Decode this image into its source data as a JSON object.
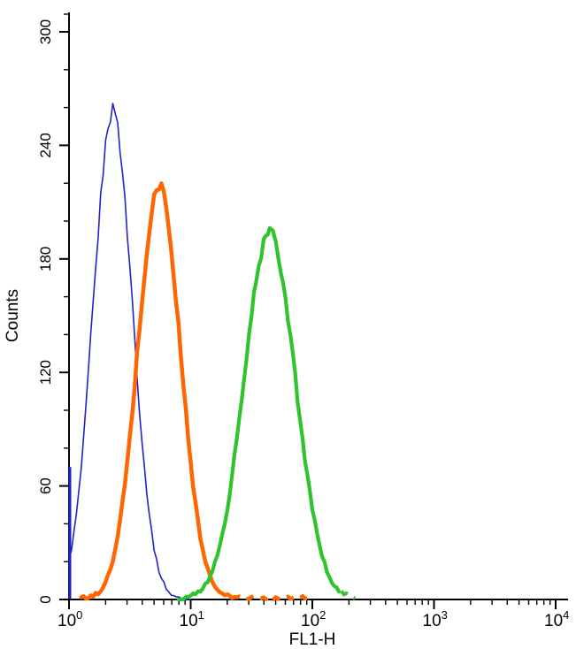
{
  "chart_data": {
    "type": "line",
    "subtype": "flow-cytometry-histogram-overlay",
    "title": "",
    "xlabel": "FL1-H",
    "ylabel": "Counts",
    "x_scale": "log10",
    "xlim": [
      1,
      10000
    ],
    "ylim": [
      0,
      300
    ],
    "grid": false,
    "legend": "none",
    "axis_color": "#000000",
    "x_tick_base": "10",
    "x_major_tick_exponents": [
      "0",
      "1",
      "2",
      "3",
      "4"
    ],
    "y_major_ticks": [
      0,
      60,
      120,
      180,
      240,
      300
    ],
    "y_minor_tick_step": 20,
    "series": [
      {
        "name": "blue-histogram",
        "color": "#2222cc",
        "line_width": 1.6,
        "peak": {
          "x": 2.3,
          "counts": 258
        },
        "sigma_decades": 0.16,
        "first_bin_spike_counts": 70,
        "points": [
          [
            1.0,
            21
          ],
          [
            1.26,
            69
          ],
          [
            1.58,
            156
          ],
          [
            2.0,
            240
          ],
          [
            2.29,
            258
          ],
          [
            2.51,
            250
          ],
          [
            3.16,
            176
          ],
          [
            3.98,
            84
          ],
          [
            5.01,
            27
          ],
          [
            6.31,
            6
          ],
          [
            7.94,
            1
          ],
          [
            10.0,
            0
          ]
        ]
      },
      {
        "name": "orange-histogram",
        "color": "#ff6600",
        "line_width": 4.5,
        "peak": {
          "x": 5.5,
          "counts": 218
        },
        "sigma_decades": 0.175,
        "dashed_tail_from_x": 22,
        "points": [
          [
            1.26,
            1
          ],
          [
            1.58,
            2
          ],
          [
            2.0,
            9
          ],
          [
            2.51,
            33
          ],
          [
            3.16,
            85
          ],
          [
            3.98,
            158
          ],
          [
            5.01,
            212
          ],
          [
            5.5,
            218
          ],
          [
            6.31,
            206
          ],
          [
            7.94,
            144
          ],
          [
            10.0,
            72
          ],
          [
            12.6,
            26
          ],
          [
            15.8,
            7
          ],
          [
            20.0,
            2
          ],
          [
            25.1,
            1
          ],
          [
            31.6,
            1
          ],
          [
            50.1,
            1
          ],
          [
            79.4,
            1
          ],
          [
            100.0,
            1
          ]
        ]
      },
      {
        "name": "green-histogram",
        "color": "#2ec42e",
        "line_width": 4.2,
        "peak": {
          "x": 45,
          "counts": 193
        },
        "sigma_decades": 0.21,
        "dashed_tail_from_x": 170,
        "points": [
          [
            7.94,
            0
          ],
          [
            10.0,
            2
          ],
          [
            12.6,
            6
          ],
          [
            15.8,
            19
          ],
          [
            20.0,
            48
          ],
          [
            25.1,
            95
          ],
          [
            31.6,
            150
          ],
          [
            39.8,
            188
          ],
          [
            44.7,
            193
          ],
          [
            50.1,
            188
          ],
          [
            63.1,
            150
          ],
          [
            79.4,
            95
          ],
          [
            100.0,
            48
          ],
          [
            126.0,
            19
          ],
          [
            158.0,
            6
          ],
          [
            200.0,
            2
          ],
          [
            224.0,
            1
          ]
        ]
      }
    ]
  }
}
